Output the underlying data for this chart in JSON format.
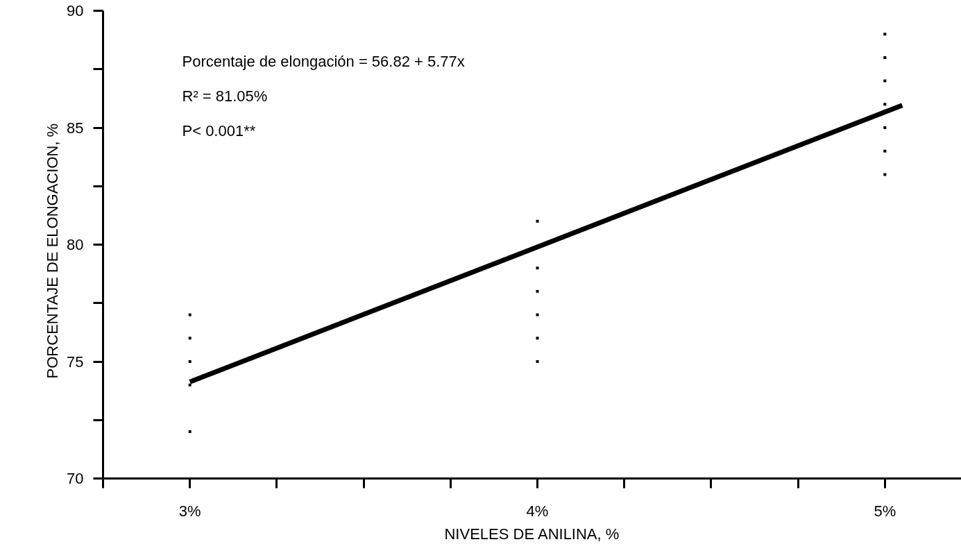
{
  "chart_data": {
    "type": "scatter",
    "xlabel": "NIVELES DE ANILINA, %",
    "ylabel": "PORCENTAJE   DE  ELONGACION, %",
    "xlim": [
      2.75,
      5.22
    ],
    "ylim": [
      70,
      90
    ],
    "xticks": [
      {
        "value": 2.75,
        "label": null
      },
      {
        "value": 3,
        "label": "3%"
      },
      {
        "value": 3.25,
        "label": null
      },
      {
        "value": 3.5,
        "label": null
      },
      {
        "value": 3.75,
        "label": null
      },
      {
        "value": 4,
        "label": "4%"
      },
      {
        "value": 4.25,
        "label": null
      },
      {
        "value": 4.5,
        "label": null
      },
      {
        "value": 4.75,
        "label": null
      },
      {
        "value": 5,
        "label": "5%"
      }
    ],
    "yticks": [
      70,
      {
        "value": 72.5,
        "label": null
      },
      75,
      {
        "value": 77.5,
        "label": null
      },
      80,
      {
        "value": 82.5,
        "label": null
      },
      85,
      {
        "value": 87.5,
        "label": null
      },
      90
    ],
    "marker": "square",
    "grid": false,
    "series": [
      {
        "color": "#000000",
        "x": [
          3,
          3,
          3,
          3,
          3,
          4,
          4,
          4,
          4,
          4,
          4,
          5,
          5,
          5,
          5,
          5,
          5,
          5
        ],
        "values": [
          77,
          76,
          75,
          74,
          72,
          81,
          79,
          78,
          77,
          76,
          75,
          89,
          88,
          87,
          86,
          85,
          84,
          83
        ]
      },
      {
        "type": "line",
        "marker": "none",
        "color": "#000000",
        "x": [
          3,
          5.05
        ],
        "values": [
          74.13,
          85.96
        ]
      }
    ],
    "annotations": [
      "Porcentaje de elongación =  56.82 + 5.77x",
      "R² = 81.05%",
      "P< 0.001**"
    ]
  }
}
